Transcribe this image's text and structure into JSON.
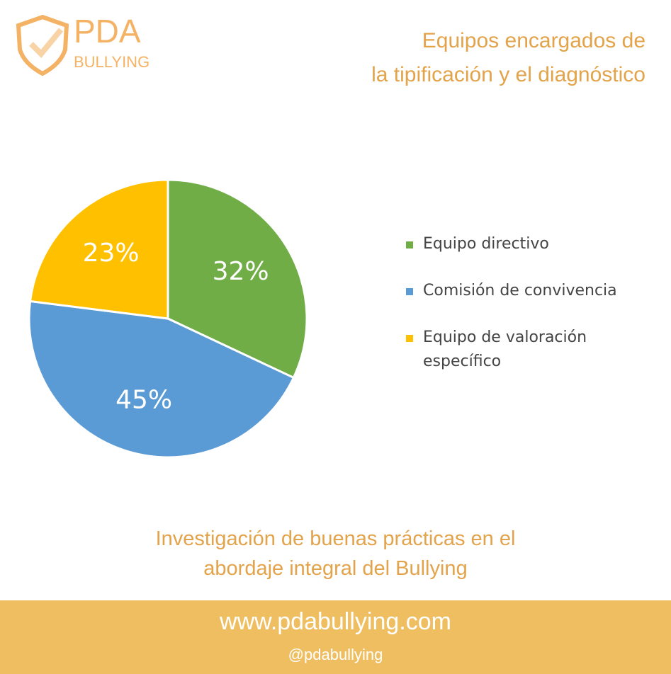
{
  "logo": {
    "name": "PDA",
    "subname": "BULLYING"
  },
  "chart_data": {
    "type": "pie",
    "title": [
      "Equipos encargados de",
      "la tipificación y el diagnóstico"
    ],
    "categories": [
      "Equipo directivo",
      "Comisión de convivencia",
      "Equipo de valoración específico"
    ],
    "values": [
      32,
      45,
      23
    ],
    "value_labels": [
      "32%",
      "45%",
      "23%"
    ],
    "colors": [
      "#70ad47",
      "#5b9bd5",
      "#ffc000"
    ],
    "legend": "right"
  },
  "caption": [
    "Investigación de buenas prácticas en el",
    "abordaje integral del Bullying"
  ],
  "footer": {
    "website": "www.pdabullying.com",
    "handle": "@pdabullying"
  }
}
